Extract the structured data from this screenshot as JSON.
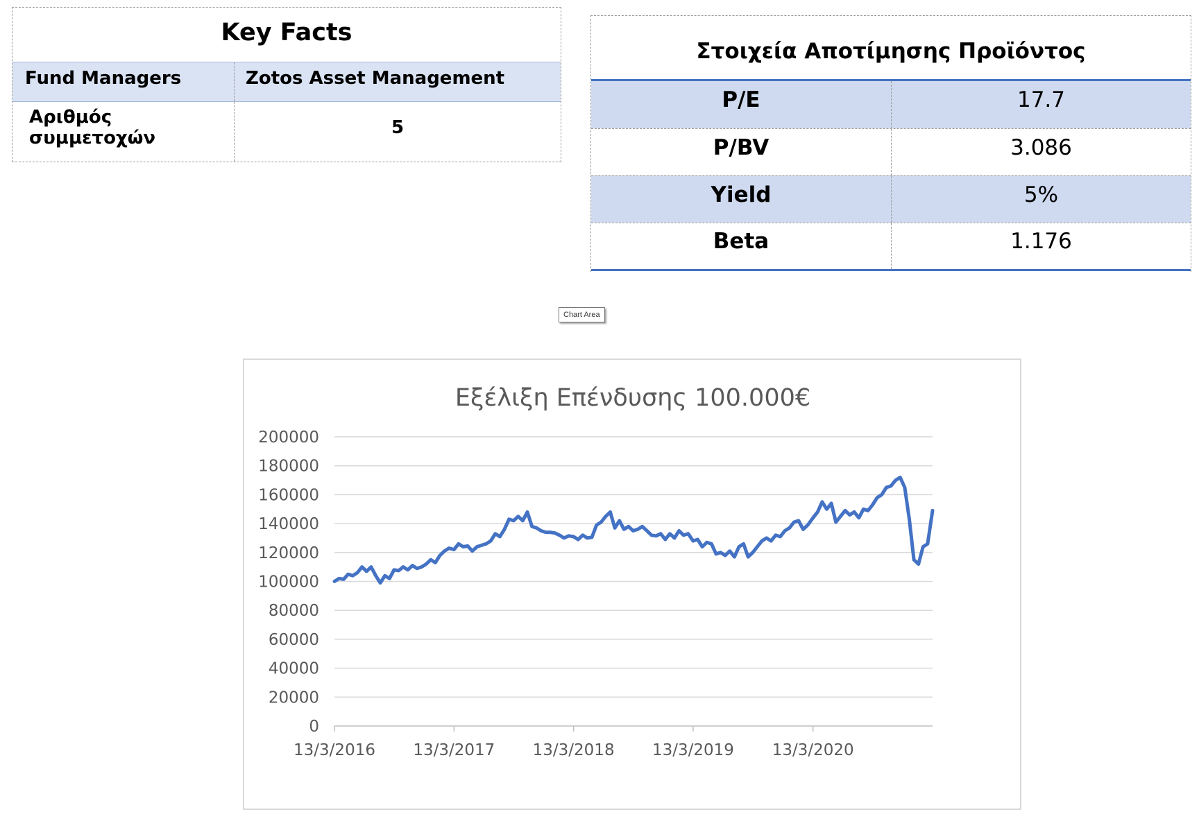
{
  "key_facts": {
    "title": "Key Facts",
    "rows": [
      {
        "label": "Fund Managers",
        "value": "Zotos Asset Management"
      },
      {
        "label": "Αριθμός συμμετοχών",
        "value": "5"
      }
    ]
  },
  "valuation": {
    "title": "Στοιχεία Αποτίμησης Προϊόντος",
    "rows": [
      {
        "label": "P/E",
        "value": "17.7"
      },
      {
        "label": "P/BV",
        "value": "3.086"
      },
      {
        "label": "Yield",
        "value": "5%"
      },
      {
        "label": "Beta",
        "value": "1.176"
      }
    ],
    "accent_color": "#4472c4",
    "band_color": "#cfdaf0"
  },
  "tooltip": {
    "label": "Chart Area"
  },
  "chart_data": {
    "type": "line",
    "title": "Εξέλιξη Επένδυσης 100.000€",
    "xlabel": "",
    "ylabel": "",
    "ylim": [
      0,
      200000
    ],
    "yticks": [
      0,
      20000,
      40000,
      60000,
      80000,
      100000,
      120000,
      140000,
      160000,
      180000,
      200000
    ],
    "xlim": [
      "2016-03-13",
      "2021-03-13"
    ],
    "xticks": [
      {
        "date": "2016-03-13",
        "label": "13/3/2016"
      },
      {
        "date": "2017-03-13",
        "label": "13/3/2017"
      },
      {
        "date": "2018-03-13",
        "label": "13/3/2018"
      },
      {
        "date": "2019-03-13",
        "label": "13/3/2019"
      },
      {
        "date": "2020-03-13",
        "label": "13/3/2020"
      }
    ],
    "grid": true,
    "line_color": "#4472c4",
    "series": [
      {
        "points": [
          [
            "2016-03-13",
            100000
          ],
          [
            "2016-03-27",
            102000
          ],
          [
            "2016-04-10",
            101500
          ],
          [
            "2016-04-24",
            105000
          ],
          [
            "2016-05-08",
            104000
          ],
          [
            "2016-05-22",
            106000
          ],
          [
            "2016-06-05",
            110000
          ],
          [
            "2016-06-19",
            107000
          ],
          [
            "2016-07-03",
            110000
          ],
          [
            "2016-07-17",
            104000
          ],
          [
            "2016-07-31",
            99000
          ],
          [
            "2016-08-14",
            104000
          ],
          [
            "2016-08-28",
            102000
          ],
          [
            "2016-09-11",
            108000
          ],
          [
            "2016-09-25",
            107500
          ],
          [
            "2016-10-09",
            110000
          ],
          [
            "2016-10-23",
            108000
          ],
          [
            "2016-11-06",
            111000
          ],
          [
            "2016-11-20",
            109000
          ],
          [
            "2016-12-04",
            110000
          ],
          [
            "2016-12-18",
            112000
          ],
          [
            "2017-01-01",
            115000
          ],
          [
            "2017-01-15",
            113000
          ],
          [
            "2017-01-29",
            118000
          ],
          [
            "2017-02-12",
            121000
          ],
          [
            "2017-02-26",
            123000
          ],
          [
            "2017-03-13",
            122000
          ],
          [
            "2017-03-27",
            126000
          ],
          [
            "2017-04-10",
            124000
          ],
          [
            "2017-04-24",
            124500
          ],
          [
            "2017-05-08",
            121000
          ],
          [
            "2017-05-22",
            124000
          ],
          [
            "2017-06-05",
            125000
          ],
          [
            "2017-06-19",
            126000
          ],
          [
            "2017-07-03",
            128000
          ],
          [
            "2017-07-17",
            133000
          ],
          [
            "2017-07-31",
            131000
          ],
          [
            "2017-08-14",
            136000
          ],
          [
            "2017-08-28",
            143000
          ],
          [
            "2017-09-11",
            142000
          ],
          [
            "2017-09-25",
            145000
          ],
          [
            "2017-10-09",
            142000
          ],
          [
            "2017-10-23",
            148000
          ],
          [
            "2017-11-06",
            138000
          ],
          [
            "2017-11-20",
            137000
          ],
          [
            "2017-12-04",
            135000
          ],
          [
            "2017-12-18",
            134000
          ],
          [
            "2018-01-01",
            134000
          ],
          [
            "2018-01-15",
            133500
          ],
          [
            "2018-01-29",
            132000
          ],
          [
            "2018-02-12",
            130000
          ],
          [
            "2018-02-26",
            131500
          ],
          [
            "2018-03-13",
            131000
          ],
          [
            "2018-03-27",
            129000
          ],
          [
            "2018-04-10",
            132000
          ],
          [
            "2018-04-24",
            130000
          ],
          [
            "2018-05-08",
            130500
          ],
          [
            "2018-05-22",
            139000
          ],
          [
            "2018-06-05",
            141000
          ],
          [
            "2018-06-19",
            145000
          ],
          [
            "2018-07-03",
            148000
          ],
          [
            "2018-07-17",
            137000
          ],
          [
            "2018-07-31",
            142000
          ],
          [
            "2018-08-14",
            136000
          ],
          [
            "2018-08-28",
            138000
          ],
          [
            "2018-09-11",
            135000
          ],
          [
            "2018-09-25",
            136000
          ],
          [
            "2018-10-09",
            138000
          ],
          [
            "2018-10-23",
            135000
          ],
          [
            "2018-11-06",
            132000
          ],
          [
            "2018-11-20",
            131500
          ],
          [
            "2018-12-04",
            133000
          ],
          [
            "2018-12-18",
            129000
          ],
          [
            "2019-01-01",
            133000
          ],
          [
            "2019-01-15",
            130000
          ],
          [
            "2019-01-29",
            135000
          ],
          [
            "2019-02-12",
            132000
          ],
          [
            "2019-02-26",
            133000
          ],
          [
            "2019-03-13",
            128000
          ],
          [
            "2019-03-27",
            129000
          ],
          [
            "2019-04-10",
            124000
          ],
          [
            "2019-04-24",
            127000
          ],
          [
            "2019-05-08",
            126000
          ],
          [
            "2019-05-22",
            119000
          ],
          [
            "2019-06-05",
            120000
          ],
          [
            "2019-06-19",
            118000
          ],
          [
            "2019-07-03",
            121000
          ],
          [
            "2019-07-17",
            117000
          ],
          [
            "2019-07-31",
            124000
          ],
          [
            "2019-08-14",
            126000
          ],
          [
            "2019-08-28",
            117000
          ],
          [
            "2019-09-11",
            120000
          ],
          [
            "2019-09-25",
            124000
          ],
          [
            "2019-10-09",
            128000
          ],
          [
            "2019-10-23",
            130000
          ],
          [
            "2019-11-06",
            128000
          ],
          [
            "2019-11-20",
            132000
          ],
          [
            "2019-12-04",
            131000
          ],
          [
            "2019-12-18",
            135000
          ],
          [
            "2020-01-01",
            137000
          ],
          [
            "2020-01-15",
            141000
          ],
          [
            "2020-01-29",
            142000
          ],
          [
            "2020-02-12",
            136000
          ],
          [
            "2020-02-26",
            139000
          ],
          [
            "2020-03-13",
            144000
          ],
          [
            "2020-03-27",
            148000
          ],
          [
            "2020-04-10",
            155000
          ],
          [
            "2020-04-24",
            150000
          ],
          [
            "2020-05-08",
            154000
          ],
          [
            "2020-05-22",
            141000
          ],
          [
            "2020-06-05",
            145000
          ],
          [
            "2020-06-19",
            149000
          ],
          [
            "2020-07-03",
            146000
          ],
          [
            "2020-07-17",
            148000
          ],
          [
            "2020-07-31",
            144000
          ],
          [
            "2020-08-14",
            150000
          ],
          [
            "2020-08-28",
            149000
          ],
          [
            "2020-09-11",
            153000
          ],
          [
            "2020-09-25",
            158000
          ],
          [
            "2020-10-09",
            160000
          ],
          [
            "2020-10-23",
            165000
          ],
          [
            "2020-11-06",
            166000
          ],
          [
            "2020-11-20",
            170000
          ],
          [
            "2020-12-04",
            172000
          ],
          [
            "2020-12-18",
            165000
          ],
          [
            "2021-01-01",
            143000
          ],
          [
            "2021-01-15",
            115000
          ],
          [
            "2021-01-29",
            112000
          ],
          [
            "2021-02-12",
            124000
          ],
          [
            "2021-02-26",
            126000
          ],
          [
            "2021-03-13",
            149000
          ]
        ]
      }
    ]
  }
}
